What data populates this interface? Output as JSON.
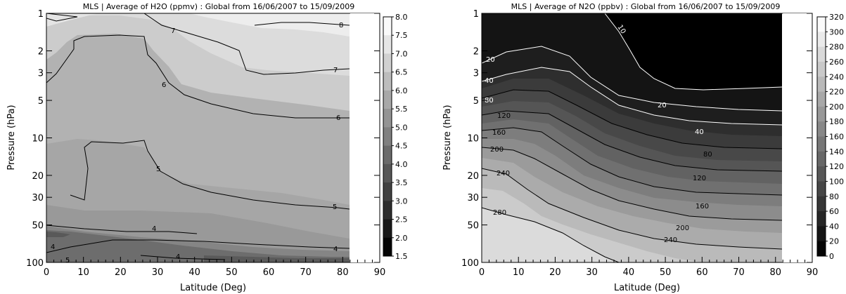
{
  "chart_data": [
    {
      "type": "heatmap",
      "subtype": "filled-contour",
      "title": "MLS | Average of H2O (ppmv) : Global from 16/06/2007 to 15/09/2009",
      "xlabel": "Latitude (Deg)",
      "ylabel": "Pressure (hPa)",
      "xlim": [
        0,
        90
      ],
      "ylim": [
        100,
        1
      ],
      "y_scale": "log",
      "x_ticks": [
        "0",
        "10",
        "20",
        "30",
        "40",
        "50",
        "60",
        "70",
        "80",
        "90"
      ],
      "y_ticks": [
        "1",
        "2",
        "3",
        "5",
        "10",
        "20",
        "30",
        "50",
        "100"
      ],
      "data_x_max": 82,
      "colorbar_ticks": [
        "8.0",
        "7.5",
        "7.0",
        "6.5",
        "6.0",
        "5.5",
        "5.0",
        "4.5",
        "4.0",
        "3.5",
        "3.0",
        "2.5",
        "2.0",
        "1.5"
      ],
      "colorbar_range": [
        1.5,
        8.0
      ],
      "colormap": "grayscale (black = low, white = high)",
      "contour_labels": [
        "8",
        "7",
        "7",
        "6",
        "6",
        "5",
        "5",
        "4",
        "4",
        "4",
        "5"
      ],
      "bands": [
        {
          "value": 7.5,
          "color": "#ededed"
        },
        {
          "value": 7.0,
          "color": "#dcdcdc"
        },
        {
          "value": 6.5,
          "color": "#cccccc"
        },
        {
          "value": 6.0,
          "color": "#bdbdbd"
        },
        {
          "value": 5.5,
          "color": "#b2b2b2"
        },
        {
          "value": 5.0,
          "color": "#a6a6a6"
        },
        {
          "value": 4.5,
          "color": "#999999"
        },
        {
          "value": 4.0,
          "color": "#858585"
        },
        {
          "value": 3.5,
          "color": "#6d6d6d"
        },
        {
          "value": 3.0,
          "color": "#595959"
        }
      ]
    },
    {
      "type": "heatmap",
      "subtype": "filled-contour",
      "title": "MLS | Average of N2O (ppbv) : Global from 16/06/2007 to 15/09/2009",
      "xlabel": "Latitude (Deg)",
      "ylabel": "Pressure (hPa)",
      "xlim": [
        0,
        90
      ],
      "ylim": [
        100,
        1
      ],
      "y_scale": "log",
      "x_ticks": [
        "0",
        "10",
        "20",
        "30",
        "40",
        "50",
        "60",
        "70",
        "80",
        "90"
      ],
      "y_ticks": [
        "1",
        "2",
        "3",
        "5",
        "10",
        "20",
        "30",
        "50",
        "100"
      ],
      "data_x_max": 82,
      "colorbar_ticks": [
        "320",
        "300",
        "280",
        "260",
        "240",
        "220",
        "200",
        "180",
        "160",
        "140",
        "120",
        "100",
        "80",
        "60",
        "40",
        "20",
        "0"
      ],
      "colorbar_range": [
        0,
        320
      ],
      "colormap": "grayscale (black = low, white = high)",
      "contour_labels": [
        "10",
        "20",
        "40",
        "80",
        "120",
        "160",
        "200",
        "240",
        "280",
        "20",
        "40",
        "80",
        "120",
        "160",
        "200",
        "240"
      ],
      "bands": [
        {
          "value": 10,
          "color": "#000000"
        },
        {
          "value": 20,
          "color": "#141414"
        },
        {
          "value": 40,
          "color": "#1e1e1e"
        },
        {
          "value": 60,
          "color": "#2e2e2e"
        },
        {
          "value": 80,
          "color": "#3b3b3b"
        },
        {
          "value": 100,
          "color": "#484848"
        },
        {
          "value": 120,
          "color": "#555555"
        },
        {
          "value": 140,
          "color": "#626262"
        },
        {
          "value": 160,
          "color": "#707070"
        },
        {
          "value": 180,
          "color": "#7d7d7d"
        },
        {
          "value": 200,
          "color": "#8c8c8c"
        },
        {
          "value": 220,
          "color": "#9b9b9b"
        },
        {
          "value": 240,
          "color": "#ababab"
        },
        {
          "value": 260,
          "color": "#bababa"
        },
        {
          "value": 280,
          "color": "#cbcbcb"
        },
        {
          "value": 300,
          "color": "#dbdbdb"
        }
      ]
    }
  ]
}
